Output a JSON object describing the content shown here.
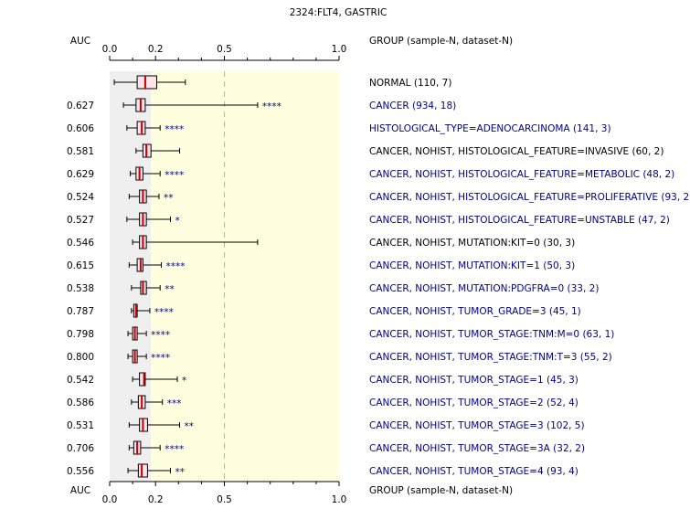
{
  "chart_data": {
    "type": "boxplot",
    "title": "2324:FLT4, GASTRIC",
    "auc_header": "AUC",
    "group_header": "GROUP (sample-N, dataset-N)",
    "x_ticks": [
      "0.0",
      "0.2",
      "0.5",
      "1.0"
    ],
    "xlim": [
      0,
      1
    ],
    "reference_line_x": 0.5,
    "colors": {
      "significant": "#00008b",
      "normal": "#000000",
      "box_fill": "#ffe4ea",
      "median": "#c00000",
      "plot_bg": "#ffffe0",
      "shade_bg": "#efefef"
    },
    "rows": [
      {
        "auc": "",
        "label": "NORMAL (110, 7)",
        "significant": false,
        "stars": "",
        "min": 0.02,
        "q1": 0.12,
        "median": 0.155,
        "q3": 0.205,
        "max": 0.33
      },
      {
        "auc": "0.627",
        "label": "CANCER (934, 18)",
        "significant": true,
        "stars": "****",
        "min": 0.06,
        "q1": 0.115,
        "median": 0.135,
        "q3": 0.155,
        "max": 0.645
      },
      {
        "auc": "0.606",
        "label": "HISTOLOGICAL_TYPE=ADENOCARCINOMA (141, 3)",
        "significant": true,
        "stars": "****",
        "min": 0.075,
        "q1": 0.12,
        "median": 0.14,
        "q3": 0.155,
        "max": 0.22
      },
      {
        "auc": "0.581",
        "label": "CANCER, NOHIST, HISTOLOGICAL_FEATURE=INVASIVE (60, 2)",
        "significant": false,
        "stars": "",
        "min": 0.115,
        "q1": 0.145,
        "median": 0.16,
        "q3": 0.18,
        "max": 0.305
      },
      {
        "auc": "0.629",
        "label": "CANCER, NOHIST, HISTOLOGICAL_FEATURE=METABOLIC (48, 2)",
        "significant": true,
        "stars": "****",
        "min": 0.09,
        "q1": 0.115,
        "median": 0.13,
        "q3": 0.145,
        "max": 0.22
      },
      {
        "auc": "0.524",
        "label": "CANCER, NOHIST, HISTOLOGICAL_FEATURE=PROLIFERATIVE (93, 2)",
        "significant": true,
        "stars": "**",
        "min": 0.085,
        "q1": 0.13,
        "median": 0.145,
        "q3": 0.16,
        "max": 0.215
      },
      {
        "auc": "0.527",
        "label": "CANCER, NOHIST, HISTOLOGICAL_FEATURE=UNSTABLE (47, 2)",
        "significant": true,
        "stars": "*",
        "min": 0.075,
        "q1": 0.13,
        "median": 0.145,
        "q3": 0.16,
        "max": 0.265
      },
      {
        "auc": "0.546",
        "label": "CANCER, NOHIST, MUTATION:KIT=0 (30, 3)",
        "significant": false,
        "stars": "",
        "min": 0.1,
        "q1": 0.13,
        "median": 0.145,
        "q3": 0.16,
        "max": 0.645
      },
      {
        "auc": "0.615",
        "label": "CANCER, NOHIST, MUTATION:KIT=1 (50, 3)",
        "significant": true,
        "stars": "****",
        "min": 0.085,
        "q1": 0.12,
        "median": 0.135,
        "q3": 0.145,
        "max": 0.225
      },
      {
        "auc": "0.538",
        "label": "CANCER, NOHIST, MUTATION:PDGFRA=0 (33, 2)",
        "significant": true,
        "stars": "**",
        "min": 0.095,
        "q1": 0.135,
        "median": 0.145,
        "q3": 0.16,
        "max": 0.22
      },
      {
        "auc": "0.787",
        "label": "CANCER, NOHIST, TUMOR_GRADE=3 (45, 1)",
        "significant": true,
        "stars": "****",
        "min": 0.095,
        "q1": 0.105,
        "median": 0.115,
        "q3": 0.12,
        "max": 0.175
      },
      {
        "auc": "0.798",
        "label": "CANCER, NOHIST, TUMOR_STAGE:TNM:M=0 (63, 1)",
        "significant": true,
        "stars": "****",
        "min": 0.08,
        "q1": 0.1,
        "median": 0.11,
        "q3": 0.12,
        "max": 0.16
      },
      {
        "auc": "0.800",
        "label": "CANCER, NOHIST, TUMOR_STAGE:TNM:T=3 (55, 2)",
        "significant": true,
        "stars": "****",
        "min": 0.08,
        "q1": 0.1,
        "median": 0.11,
        "q3": 0.12,
        "max": 0.16
      },
      {
        "auc": "0.542",
        "label": "CANCER, NOHIST, TUMOR_STAGE=1 (45, 3)",
        "significant": true,
        "stars": "*",
        "min": 0.1,
        "q1": 0.13,
        "median": 0.15,
        "q3": 0.155,
        "max": 0.295
      },
      {
        "auc": "0.586",
        "label": "CANCER, NOHIST, TUMOR_STAGE=2 (52, 4)",
        "significant": true,
        "stars": "***",
        "min": 0.095,
        "q1": 0.125,
        "median": 0.14,
        "q3": 0.155,
        "max": 0.23
      },
      {
        "auc": "0.531",
        "label": "CANCER, NOHIST, TUMOR_STAGE=3 (102, 5)",
        "significant": true,
        "stars": "**",
        "min": 0.085,
        "q1": 0.13,
        "median": 0.145,
        "q3": 0.165,
        "max": 0.305
      },
      {
        "auc": "0.706",
        "label": "CANCER, NOHIST, TUMOR_STAGE=3A (32, 2)",
        "significant": true,
        "stars": "****",
        "min": 0.085,
        "q1": 0.105,
        "median": 0.12,
        "q3": 0.135,
        "max": 0.22
      },
      {
        "auc": "0.556",
        "label": "CANCER, NOHIST, TUMOR_STAGE=4 (93, 4)",
        "significant": true,
        "stars": "**",
        "min": 0.08,
        "q1": 0.125,
        "median": 0.14,
        "q3": 0.165,
        "max": 0.265
      }
    ]
  }
}
